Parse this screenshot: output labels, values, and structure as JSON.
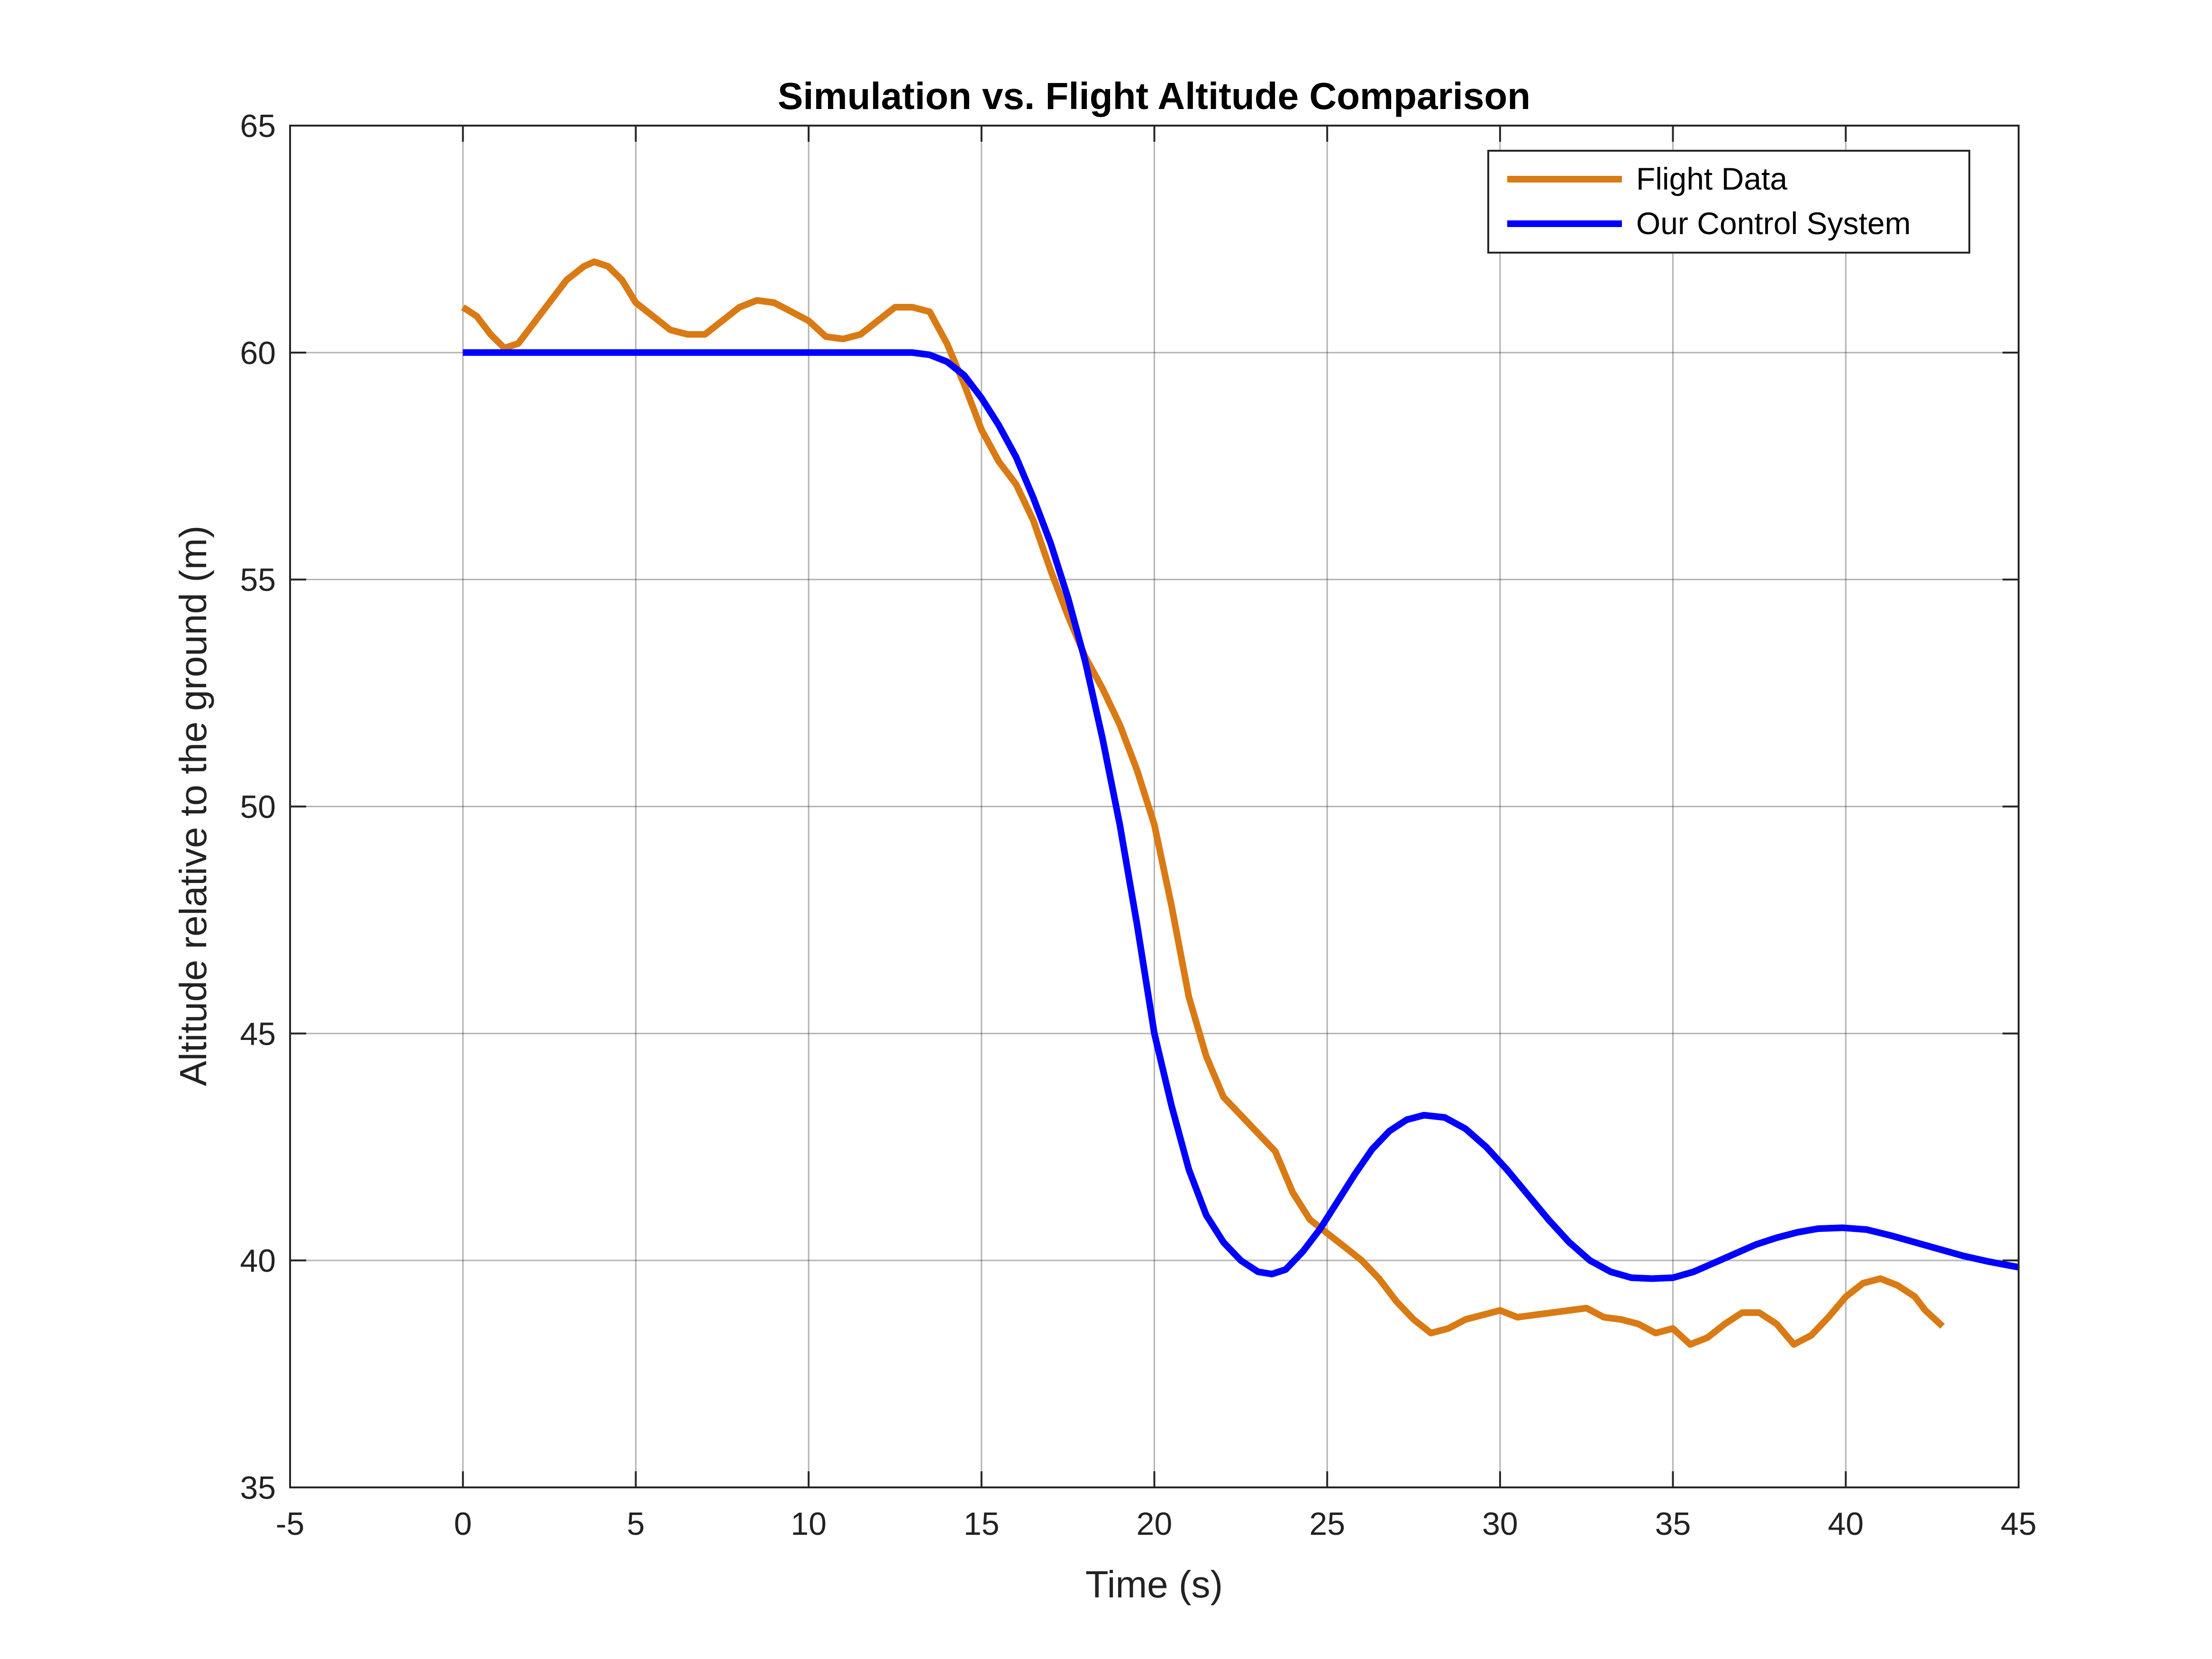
{
  "chart_data": {
    "type": "line",
    "title": "Simulation vs. Flight Altitude Comparison",
    "xlabel": "Time (s)",
    "ylabel": "Altitude relative to the ground (m)",
    "xlim": [
      -5,
      45
    ],
    "ylim": [
      35,
      65
    ],
    "xticks": [
      "-5",
      "0",
      "5",
      "10",
      "15",
      "20",
      "25",
      "30",
      "35",
      "40",
      "45"
    ],
    "yticks": [
      "35",
      "40",
      "45",
      "50",
      "55",
      "60",
      "65"
    ],
    "grid": true,
    "legend_position": "top-right",
    "series": [
      {
        "name": "Flight Data",
        "color": "#D97A14",
        "x": [
          0,
          0.4,
          0.8,
          1.2,
          1.6,
          2.0,
          2.5,
          3.0,
          3.5,
          3.8,
          4.2,
          4.6,
          5.0,
          5.5,
          6.0,
          6.5,
          7.0,
          7.5,
          8.0,
          8.5,
          9.0,
          9.5,
          10.0,
          10.5,
          11.0,
          11.5,
          12.0,
          12.5,
          13.0,
          13.5,
          14.0,
          14.5,
          15.0,
          15.5,
          16.0,
          16.5,
          17.0,
          17.5,
          18.0,
          18.5,
          19.0,
          19.5,
          20.0,
          20.5,
          21.0,
          21.5,
          22.0,
          22.5,
          23.0,
          23.5,
          24.0,
          24.5,
          25.0,
          25.5,
          26.0,
          26.5,
          27.0,
          27.5,
          28.0,
          28.5,
          29.0,
          29.5,
          30.0,
          30.5,
          31.0,
          31.5,
          32.0,
          32.5,
          33.0,
          33.5,
          34.0,
          34.5,
          35.0,
          35.5,
          36.0,
          36.5,
          37.0,
          37.5,
          38.0,
          38.5,
          39.0,
          39.5,
          40.0,
          40.5,
          41.0,
          41.5,
          42.0,
          42.3,
          42.8
        ],
        "values": [
          61.0,
          60.8,
          60.4,
          60.1,
          60.2,
          60.6,
          61.1,
          61.6,
          61.9,
          62.0,
          61.9,
          61.6,
          61.1,
          60.8,
          60.5,
          60.4,
          60.4,
          60.7,
          61.0,
          61.15,
          61.1,
          60.9,
          60.7,
          60.35,
          60.3,
          60.4,
          60.7,
          61.0,
          61.0,
          60.9,
          60.2,
          59.3,
          58.3,
          57.6,
          57.1,
          56.3,
          55.2,
          54.2,
          53.3,
          52.6,
          51.8,
          50.8,
          49.6,
          47.8,
          45.8,
          44.5,
          43.6,
          43.2,
          42.8,
          42.4,
          41.5,
          40.9,
          40.6,
          40.3,
          40.0,
          39.6,
          39.1,
          38.7,
          38.4,
          38.5,
          38.7,
          38.8,
          38.9,
          38.75,
          38.8,
          38.85,
          38.9,
          38.95,
          38.75,
          38.7,
          38.6,
          38.4,
          38.5,
          38.15,
          38.3,
          38.6,
          38.85,
          38.85,
          38.6,
          38.15,
          38.35,
          38.75,
          39.2,
          39.5,
          39.6,
          39.45,
          39.2,
          38.9,
          38.55
        ]
      },
      {
        "name": "Our Control System",
        "color": "#0000FF",
        "x": [
          0,
          2,
          4,
          6,
          8,
          10,
          11,
          12,
          12.5,
          13.0,
          13.5,
          14.0,
          14.5,
          15.0,
          15.5,
          16.0,
          16.5,
          17.0,
          17.5,
          18.0,
          18.5,
          19.0,
          19.5,
          20.0,
          20.5,
          21.0,
          21.5,
          22.0,
          22.5,
          23.0,
          23.4,
          23.8,
          24.3,
          24.8,
          25.3,
          25.8,
          26.3,
          26.8,
          27.3,
          27.8,
          28.4,
          29.0,
          29.6,
          30.2,
          30.8,
          31.4,
          32.0,
          32.6,
          33.2,
          33.8,
          34.4,
          35.0,
          35.6,
          36.2,
          36.8,
          37.4,
          38.0,
          38.6,
          39.2,
          39.9,
          40.6,
          41.3,
          42.0,
          42.7,
          43.4,
          44.1,
          44.8,
          45.0
        ],
        "values": [
          60.0,
          60.0,
          60.0,
          60.0,
          60.0,
          60.0,
          60.0,
          60.0,
          60.0,
          60.0,
          59.95,
          59.8,
          59.5,
          59.0,
          58.4,
          57.7,
          56.8,
          55.8,
          54.6,
          53.2,
          51.5,
          49.6,
          47.4,
          45.0,
          43.4,
          42.0,
          41.0,
          40.4,
          40.0,
          39.75,
          39.7,
          39.8,
          40.2,
          40.7,
          41.3,
          41.9,
          42.45,
          42.85,
          43.1,
          43.2,
          43.15,
          42.9,
          42.5,
          42.0,
          41.45,
          40.9,
          40.4,
          40.0,
          39.75,
          39.62,
          39.6,
          39.62,
          39.75,
          39.95,
          40.15,
          40.35,
          40.5,
          40.62,
          40.7,
          40.72,
          40.68,
          40.55,
          40.4,
          40.25,
          40.1,
          39.98,
          39.88,
          39.85
        ]
      }
    ]
  }
}
